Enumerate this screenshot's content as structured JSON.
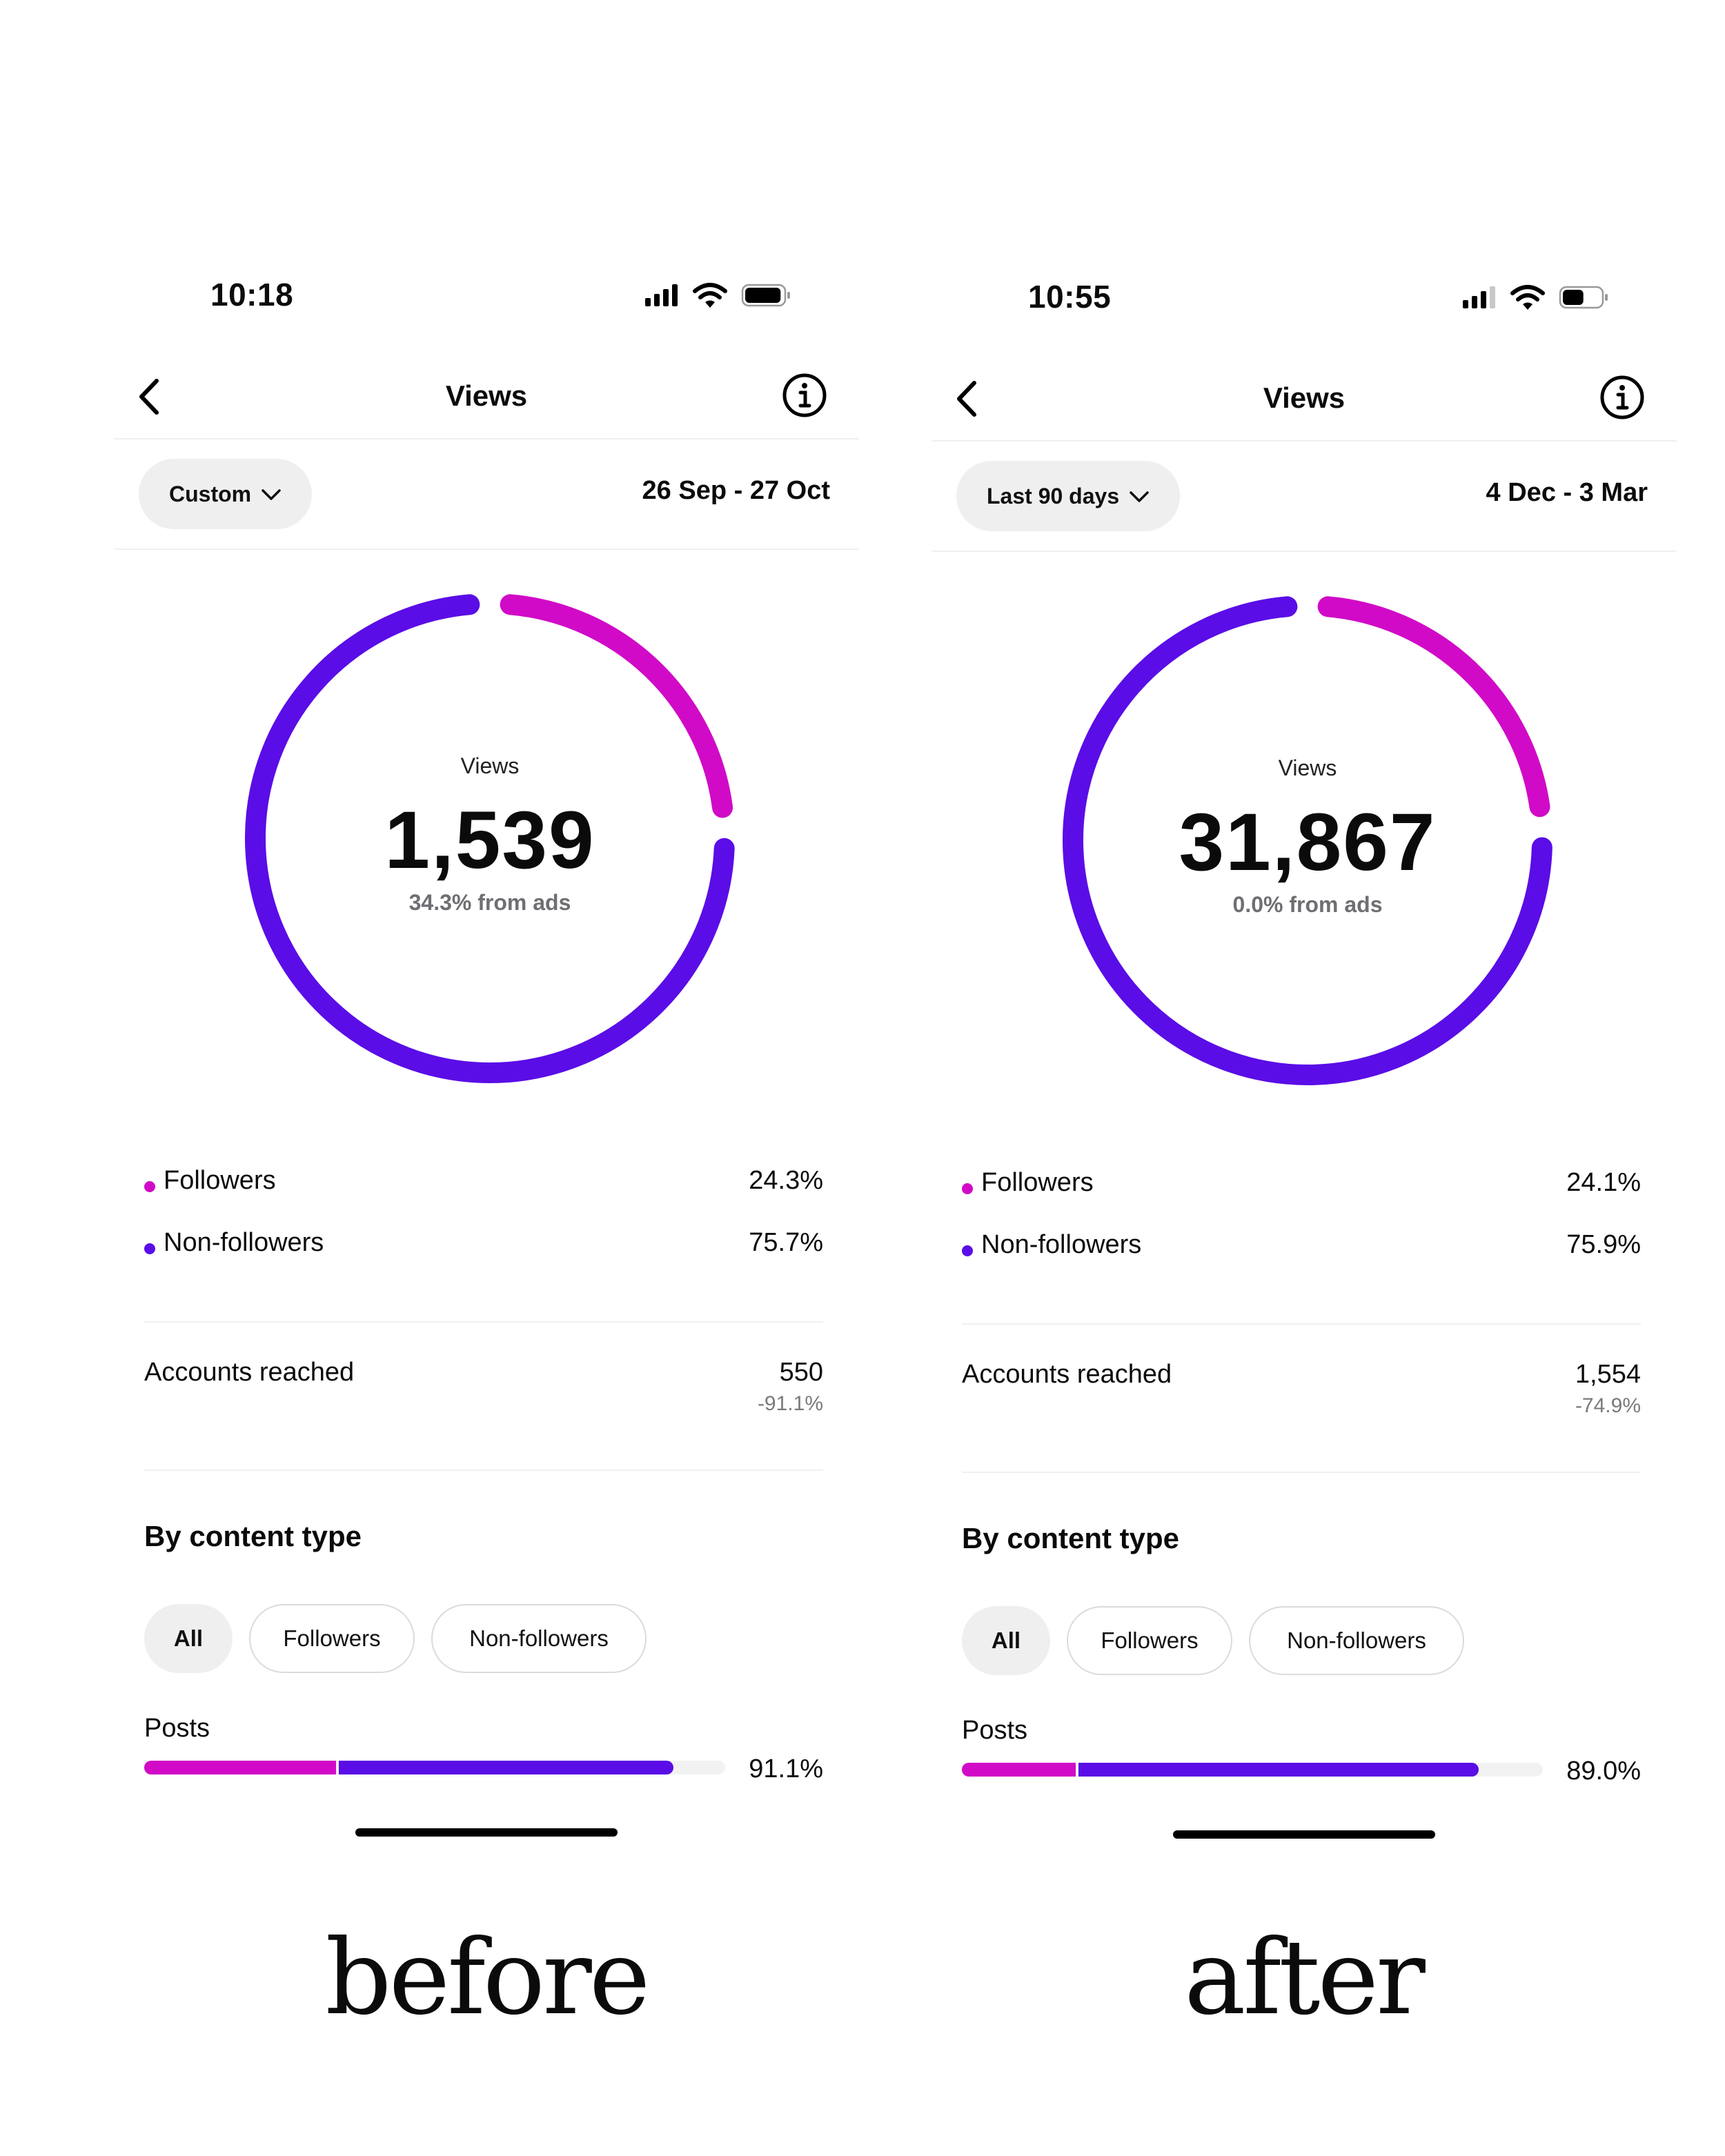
{
  "colors": {
    "followers": "#d10ac7",
    "non_followers": "#5a0de6",
    "muted": "#6e6e73"
  },
  "phones": [
    {
      "status": {
        "time": "10:18",
        "battery_fill": 0.95
      },
      "header": {
        "title": "Views"
      },
      "filter": {
        "range_label": "Custom",
        "date_range": "26 Sep - 27 Oct"
      },
      "donut": {
        "label": "Views",
        "value": "1,539",
        "ads_text": "34.3% from ads",
        "followers_fraction": 0.243
      },
      "legend": [
        {
          "label": "Followers",
          "value": "24.3%"
        },
        {
          "label": "Non-followers",
          "value": "75.7%"
        }
      ],
      "accounts": {
        "label": "Accounts reached",
        "value": "550",
        "change": "-91.1%"
      },
      "content_type": {
        "title": "By content type",
        "chips": [
          "All",
          "Followers",
          "Non-followers"
        ],
        "posts_label": "Posts",
        "posts_value": "91.1%",
        "posts_fraction": 0.911,
        "posts_followers_share": 0.362
      },
      "caption": "before"
    },
    {
      "status": {
        "time": "10:55",
        "battery_fill": 0.55
      },
      "header": {
        "title": "Views"
      },
      "filter": {
        "range_label": "Last 90 days",
        "date_range": "4 Dec - 3 Mar"
      },
      "donut": {
        "label": "Views",
        "value": "31,867",
        "ads_text": "0.0% from ads",
        "followers_fraction": 0.241
      },
      "legend": [
        {
          "label": "Followers",
          "value": "24.1%"
        },
        {
          "label": "Non-followers",
          "value": "75.9%"
        }
      ],
      "accounts": {
        "label": "Accounts reached",
        "value": "1,554",
        "change": "-74.9%"
      },
      "content_type": {
        "title": "By content type",
        "chips": [
          "All",
          "Followers",
          "Non-followers"
        ],
        "posts_label": "Posts",
        "posts_value": "89.0%",
        "posts_fraction": 0.89,
        "posts_followers_share": 0.22
      },
      "caption": "after"
    }
  ]
}
